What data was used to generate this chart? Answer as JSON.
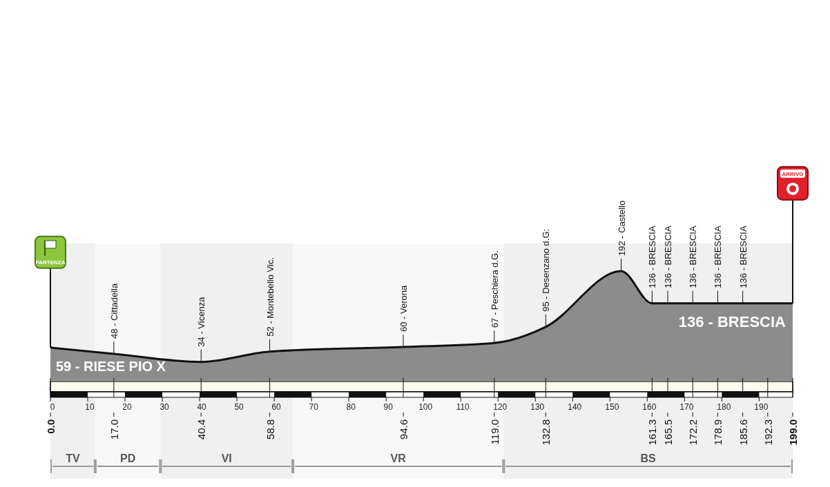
{
  "chart_data": {
    "type": "area",
    "x": [
      0,
      17,
      40.4,
      58.8,
      94.6,
      119,
      132.8,
      153,
      161.3,
      165.5,
      172.2,
      178.9,
      185.6,
      199
    ],
    "values": [
      59,
      48,
      34,
      52,
      60,
      67,
      95,
      192,
      136,
      136,
      136,
      136,
      136,
      136
    ],
    "color": "#8c8c8c",
    "value_labels": [
      "59 - RIESE PIO X",
      "48 - Cittadella",
      "34 - Vicenza",
      "52 - Montebello Vic.",
      "60 - Verona",
      "67 - Peschiera d.G.",
      "95 - Desenzano d.G:",
      "192 - Castello",
      "136 - BRESCIA",
      "136 - BRESCIA",
      "136 - BRESCIA",
      "136 - BRESCIA",
      "136 - BRESCIA",
      "136 - BRESCIA"
    ],
    "xlim": [
      0,
      199
    ],
    "xticks": [
      0,
      10,
      20,
      30,
      40,
      50,
      60,
      70,
      80,
      90,
      100,
      110,
      120,
      130,
      140,
      150,
      160,
      170,
      180,
      190
    ],
    "x2lim": [
      0,
      199
    ],
    "x2ticks": [
      {
        "value": 0,
        "label": "0.0"
      },
      {
        "value": 17,
        "label": "17.0"
      },
      {
        "value": 40.4,
        "label": "40.4"
      },
      {
        "value": 58.8,
        "label": "58.8"
      },
      {
        "value": 94.6,
        "label": "94.6"
      },
      {
        "value": 119,
        "label": "119.0"
      },
      {
        "value": 132.8,
        "label": "132.8"
      },
      {
        "value": 161.3,
        "label": "161.3"
      },
      {
        "value": 165.5,
        "label": "165.5"
      },
      {
        "value": 172.2,
        "label": "172.2"
      },
      {
        "value": 178.9,
        "label": "178.9"
      },
      {
        "value": 185.6,
        "label": "185.6"
      },
      {
        "value": 192.3,
        "label": "192.3"
      },
      {
        "value": 199,
        "label": "199.0"
      }
    ],
    "bands": [
      {
        "axis": "x",
        "from": 0,
        "to": 12,
        "label": "TV"
      },
      {
        "axis": "x",
        "from": 12,
        "to": 29.5,
        "label": "PD"
      },
      {
        "axis": "x",
        "from": 29.5,
        "to": 65,
        "label": "VI"
      },
      {
        "axis": "x",
        "from": 65,
        "to": 121.5,
        "label": "VR"
      },
      {
        "axis": "x",
        "from": 121.5,
        "to": 199,
        "label": "BS"
      }
    ],
    "annotations": [
      "PARTENZA",
      "ARRIVO"
    ]
  }
}
